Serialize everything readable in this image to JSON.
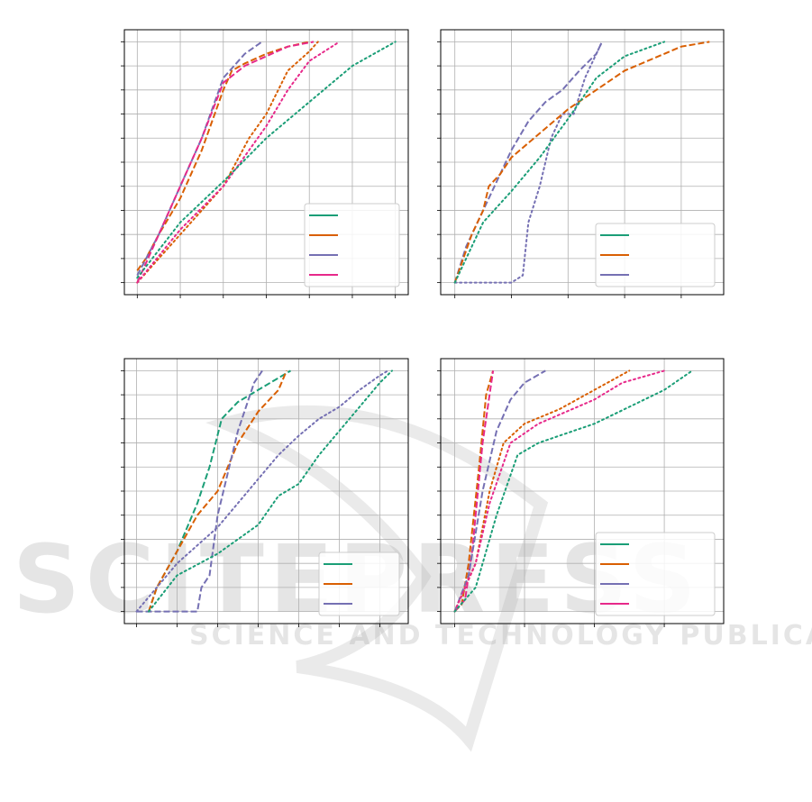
{
  "colors": {
    "green": "#1b9e77",
    "orange": "#d95f02",
    "purple": "#7570b3",
    "pink": "#e7298a",
    "grid": "#b0b0b0"
  },
  "watermark": {
    "main": "SCITEPRESS",
    "sub": "SCIENCE AND TECHNOLOGY PUBLICATIONS"
  },
  "chart_data": [
    {
      "type": "line",
      "grid": true,
      "legend": "bottom-right",
      "tick_labels_visible": false,
      "x_ticks": 7,
      "y_ticks": 11,
      "xlim": [
        -0.3,
        6.3
      ],
      "ylim": [
        -0.5,
        10.5
      ],
      "legend_colors": [
        "green",
        "orange",
        "purple",
        "pink"
      ],
      "series": [
        {
          "color": "orange",
          "style": "dashed",
          "points": [
            [
              0,
              0.5
            ],
            [
              0.2,
              1
            ],
            [
              0.5,
              2
            ],
            [
              1,
              3.5
            ],
            [
              1.5,
              5.5
            ],
            [
              2,
              8
            ],
            [
              2.2,
              8.8
            ],
            [
              2.5,
              9.1
            ],
            [
              3,
              9.5
            ],
            [
              3.5,
              9.8
            ],
            [
              4,
              10
            ]
          ]
        },
        {
          "color": "purple",
          "style": "dashed",
          "points": [
            [
              0,
              0.3
            ],
            [
              0.5,
              2
            ],
            [
              1,
              4
            ],
            [
              1.5,
              6
            ],
            [
              2,
              8.5
            ],
            [
              2.5,
              9.5
            ],
            [
              2.9,
              10
            ]
          ]
        },
        {
          "color": "pink",
          "style": "dashed",
          "points": [
            [
              0,
              0
            ],
            [
              0.5,
              2
            ],
            [
              1,
              4
            ],
            [
              1.5,
              6
            ],
            [
              2,
              8.3
            ],
            [
              2.5,
              9
            ],
            [
              3,
              9.4
            ],
            [
              3.5,
              9.8
            ],
            [
              4.1,
              10
            ]
          ]
        },
        {
          "color": "orange",
          "style": "dotted",
          "points": [
            [
              0,
              0
            ],
            [
              1,
              2
            ],
            [
              2,
              4
            ],
            [
              2.6,
              6
            ],
            [
              3,
              7
            ],
            [
              3.5,
              8.8
            ],
            [
              4,
              9.6
            ],
            [
              4.2,
              10
            ]
          ]
        },
        {
          "color": "pink",
          "style": "dotted",
          "points": [
            [
              0,
              0
            ],
            [
              1,
              2.2
            ],
            [
              2,
              4
            ],
            [
              3,
              6.5
            ],
            [
              3.5,
              8
            ],
            [
              4,
              9.2
            ],
            [
              4.7,
              10
            ]
          ]
        },
        {
          "color": "green",
          "style": "dotted",
          "points": [
            [
              0,
              0.2
            ],
            [
              1,
              2.5
            ],
            [
              2,
              4.2
            ],
            [
              3,
              6
            ],
            [
              4,
              7.5
            ],
            [
              5,
              9
            ],
            [
              6,
              10
            ]
          ]
        }
      ]
    },
    {
      "type": "line",
      "grid": true,
      "legend": "bottom-right",
      "tick_labels_visible": false,
      "x_ticks": 5,
      "y_ticks": 11,
      "xlim": [
        -0.25,
        4.75
      ],
      "ylim": [
        -0.5,
        10.5
      ],
      "legend_colors": [
        "green",
        "orange",
        "purple"
      ],
      "series": [
        {
          "color": "purple",
          "style": "dashed",
          "points": [
            [
              0,
              0
            ],
            [
              0.2,
              1.5
            ],
            [
              0.5,
              3
            ],
            [
              0.8,
              4.5
            ],
            [
              1,
              5.5
            ],
            [
              1.3,
              6.7
            ],
            [
              1.6,
              7.5
            ],
            [
              1.9,
              8
            ],
            [
              2.2,
              8.8
            ],
            [
              2.5,
              9.5
            ],
            [
              2.6,
              10
            ]
          ]
        },
        {
          "color": "purple",
          "style": "dotted",
          "points": [
            [
              0,
              0
            ],
            [
              1,
              0
            ],
            [
              1.2,
              0.3
            ],
            [
              1.3,
              2.5
            ],
            [
              1.5,
              4
            ],
            [
              1.7,
              6
            ],
            [
              1.9,
              7
            ],
            [
              2.1,
              7
            ],
            [
              2.3,
              8.5
            ],
            [
              2.5,
              9.5
            ],
            [
              2.6,
              10
            ]
          ]
        },
        {
          "color": "orange",
          "style": "dashed",
          "points": [
            [
              0,
              0
            ],
            [
              0.3,
              2
            ],
            [
              0.5,
              3
            ],
            [
              0.6,
              4
            ],
            [
              0.8,
              4.5
            ],
            [
              1,
              5.2
            ],
            [
              1.5,
              6.2
            ],
            [
              2,
              7.2
            ],
            [
              2.5,
              8
            ],
            [
              3,
              8.8
            ],
            [
              3.5,
              9.3
            ],
            [
              4,
              9.8
            ],
            [
              4.5,
              10
            ]
          ]
        },
        {
          "color": "green",
          "style": "dotted",
          "points": [
            [
              0,
              0
            ],
            [
              0.5,
              2.5
            ],
            [
              1,
              3.8
            ],
            [
              1.5,
              5.2
            ],
            [
              2,
              6.8
            ],
            [
              2.5,
              8.5
            ],
            [
              3,
              9.4
            ],
            [
              3.7,
              10
            ]
          ]
        }
      ]
    },
    {
      "type": "line",
      "grid": true,
      "legend": "bottom-right",
      "tick_labels_visible": false,
      "x_ticks": 7,
      "y_ticks": 11,
      "xlim": [
        -0.3,
        6.7
      ],
      "ylim": [
        -0.5,
        10.5
      ],
      "legend_colors": [
        "green",
        "orange",
        "purple"
      ],
      "series": [
        {
          "color": "green",
          "style": "dashed",
          "points": [
            [
              0.3,
              0
            ],
            [
              0.5,
              1
            ],
            [
              1,
              2.5
            ],
            [
              1.5,
              4.5
            ],
            [
              1.8,
              6
            ],
            [
              2.1,
              8
            ],
            [
              2.5,
              8.7
            ],
            [
              3,
              9.2
            ],
            [
              3.5,
              9.7
            ],
            [
              3.8,
              10
            ]
          ]
        },
        {
          "color": "orange",
          "style": "dashed",
          "points": [
            [
              0.3,
              0
            ],
            [
              0.5,
              1
            ],
            [
              1,
              2.5
            ],
            [
              1.5,
              4
            ],
            [
              2,
              5
            ],
            [
              2.5,
              7
            ],
            [
              3,
              8.3
            ],
            [
              3.5,
              9.2
            ],
            [
              3.7,
              10
            ]
          ]
        },
        {
          "color": "purple",
          "style": "dashed",
          "points": [
            [
              0,
              0
            ],
            [
              1.5,
              0
            ],
            [
              1.6,
              1
            ],
            [
              1.8,
              1.5
            ],
            [
              2,
              4
            ],
            [
              2.5,
              7.5
            ],
            [
              2.9,
              9.5
            ],
            [
              3.1,
              10
            ]
          ]
        },
        {
          "color": "purple",
          "style": "dotted",
          "points": [
            [
              0,
              0
            ],
            [
              0.5,
              1
            ],
            [
              1,
              2
            ],
            [
              2,
              3.5
            ],
            [
              2.5,
              4.5
            ],
            [
              3,
              5.5
            ],
            [
              3.5,
              6.5
            ],
            [
              4,
              7.3
            ],
            [
              4.5,
              8
            ],
            [
              5,
              8.5
            ],
            [
              5.5,
              9.2
            ],
            [
              6,
              9.8
            ],
            [
              6.2,
              10
            ]
          ]
        },
        {
          "color": "green",
          "style": "dotted",
          "points": [
            [
              0.3,
              0
            ],
            [
              1,
              1.5
            ],
            [
              2,
              2.4
            ],
            [
              3,
              3.6
            ],
            [
              3.5,
              4.8
            ],
            [
              4,
              5.3
            ],
            [
              4.5,
              6.5
            ],
            [
              5,
              7.5
            ],
            [
              5.5,
              8.5
            ],
            [
              6,
              9.5
            ],
            [
              6.3,
              10
            ]
          ]
        }
      ]
    },
    {
      "type": "line",
      "grid": true,
      "legend": "bottom-right",
      "tick_labels_visible": false,
      "x_ticks": 4,
      "y_ticks": 11,
      "xlim": [
        -0.2,
        3.85
      ],
      "ylim": [
        -0.5,
        10.5
      ],
      "legend_colors": [
        "green",
        "orange",
        "purple",
        "pink"
      ],
      "series": [
        {
          "color": "orange",
          "style": "dashed",
          "points": [
            [
              0,
              0
            ],
            [
              0.1,
              0.3
            ],
            [
              0.2,
              2
            ],
            [
              0.35,
              6
            ],
            [
              0.45,
              9
            ],
            [
              0.55,
              10
            ]
          ]
        },
        {
          "color": "pink",
          "style": "dashed",
          "points": [
            [
              0,
              0
            ],
            [
              0.15,
              0.5
            ],
            [
              0.25,
              2.5
            ],
            [
              0.4,
              7
            ],
            [
              0.55,
              10
            ]
          ]
        },
        {
          "color": "purple",
          "style": "dashed",
          "points": [
            [
              0,
              0
            ],
            [
              0.2,
              1.5
            ],
            [
              0.4,
              5
            ],
            [
              0.6,
              7.5
            ],
            [
              0.8,
              8.8
            ],
            [
              1,
              9.5
            ],
            [
              1.3,
              10
            ]
          ]
        },
        {
          "color": "orange",
          "style": "dotted",
          "points": [
            [
              0,
              0
            ],
            [
              0.3,
              2
            ],
            [
              0.5,
              5
            ],
            [
              0.7,
              7
            ],
            [
              1,
              7.8
            ],
            [
              1.5,
              8.4
            ],
            [
              2,
              9.2
            ],
            [
              2.5,
              10
            ]
          ]
        },
        {
          "color": "pink",
          "style": "dotted",
          "points": [
            [
              0,
              0
            ],
            [
              0.3,
              2
            ],
            [
              0.5,
              4.5
            ],
            [
              0.8,
              7
            ],
            [
              1.2,
              7.8
            ],
            [
              2,
              8.8
            ],
            [
              2.4,
              9.5
            ],
            [
              3,
              10
            ]
          ]
        },
        {
          "color": "green",
          "style": "dotted",
          "points": [
            [
              0,
              0
            ],
            [
              0.3,
              1
            ],
            [
              0.6,
              4
            ],
            [
              0.9,
              6.5
            ],
            [
              1.2,
              7
            ],
            [
              2,
              7.8
            ],
            [
              2.5,
              8.5
            ],
            [
              3,
              9.2
            ],
            [
              3.4,
              10
            ]
          ]
        }
      ]
    }
  ]
}
